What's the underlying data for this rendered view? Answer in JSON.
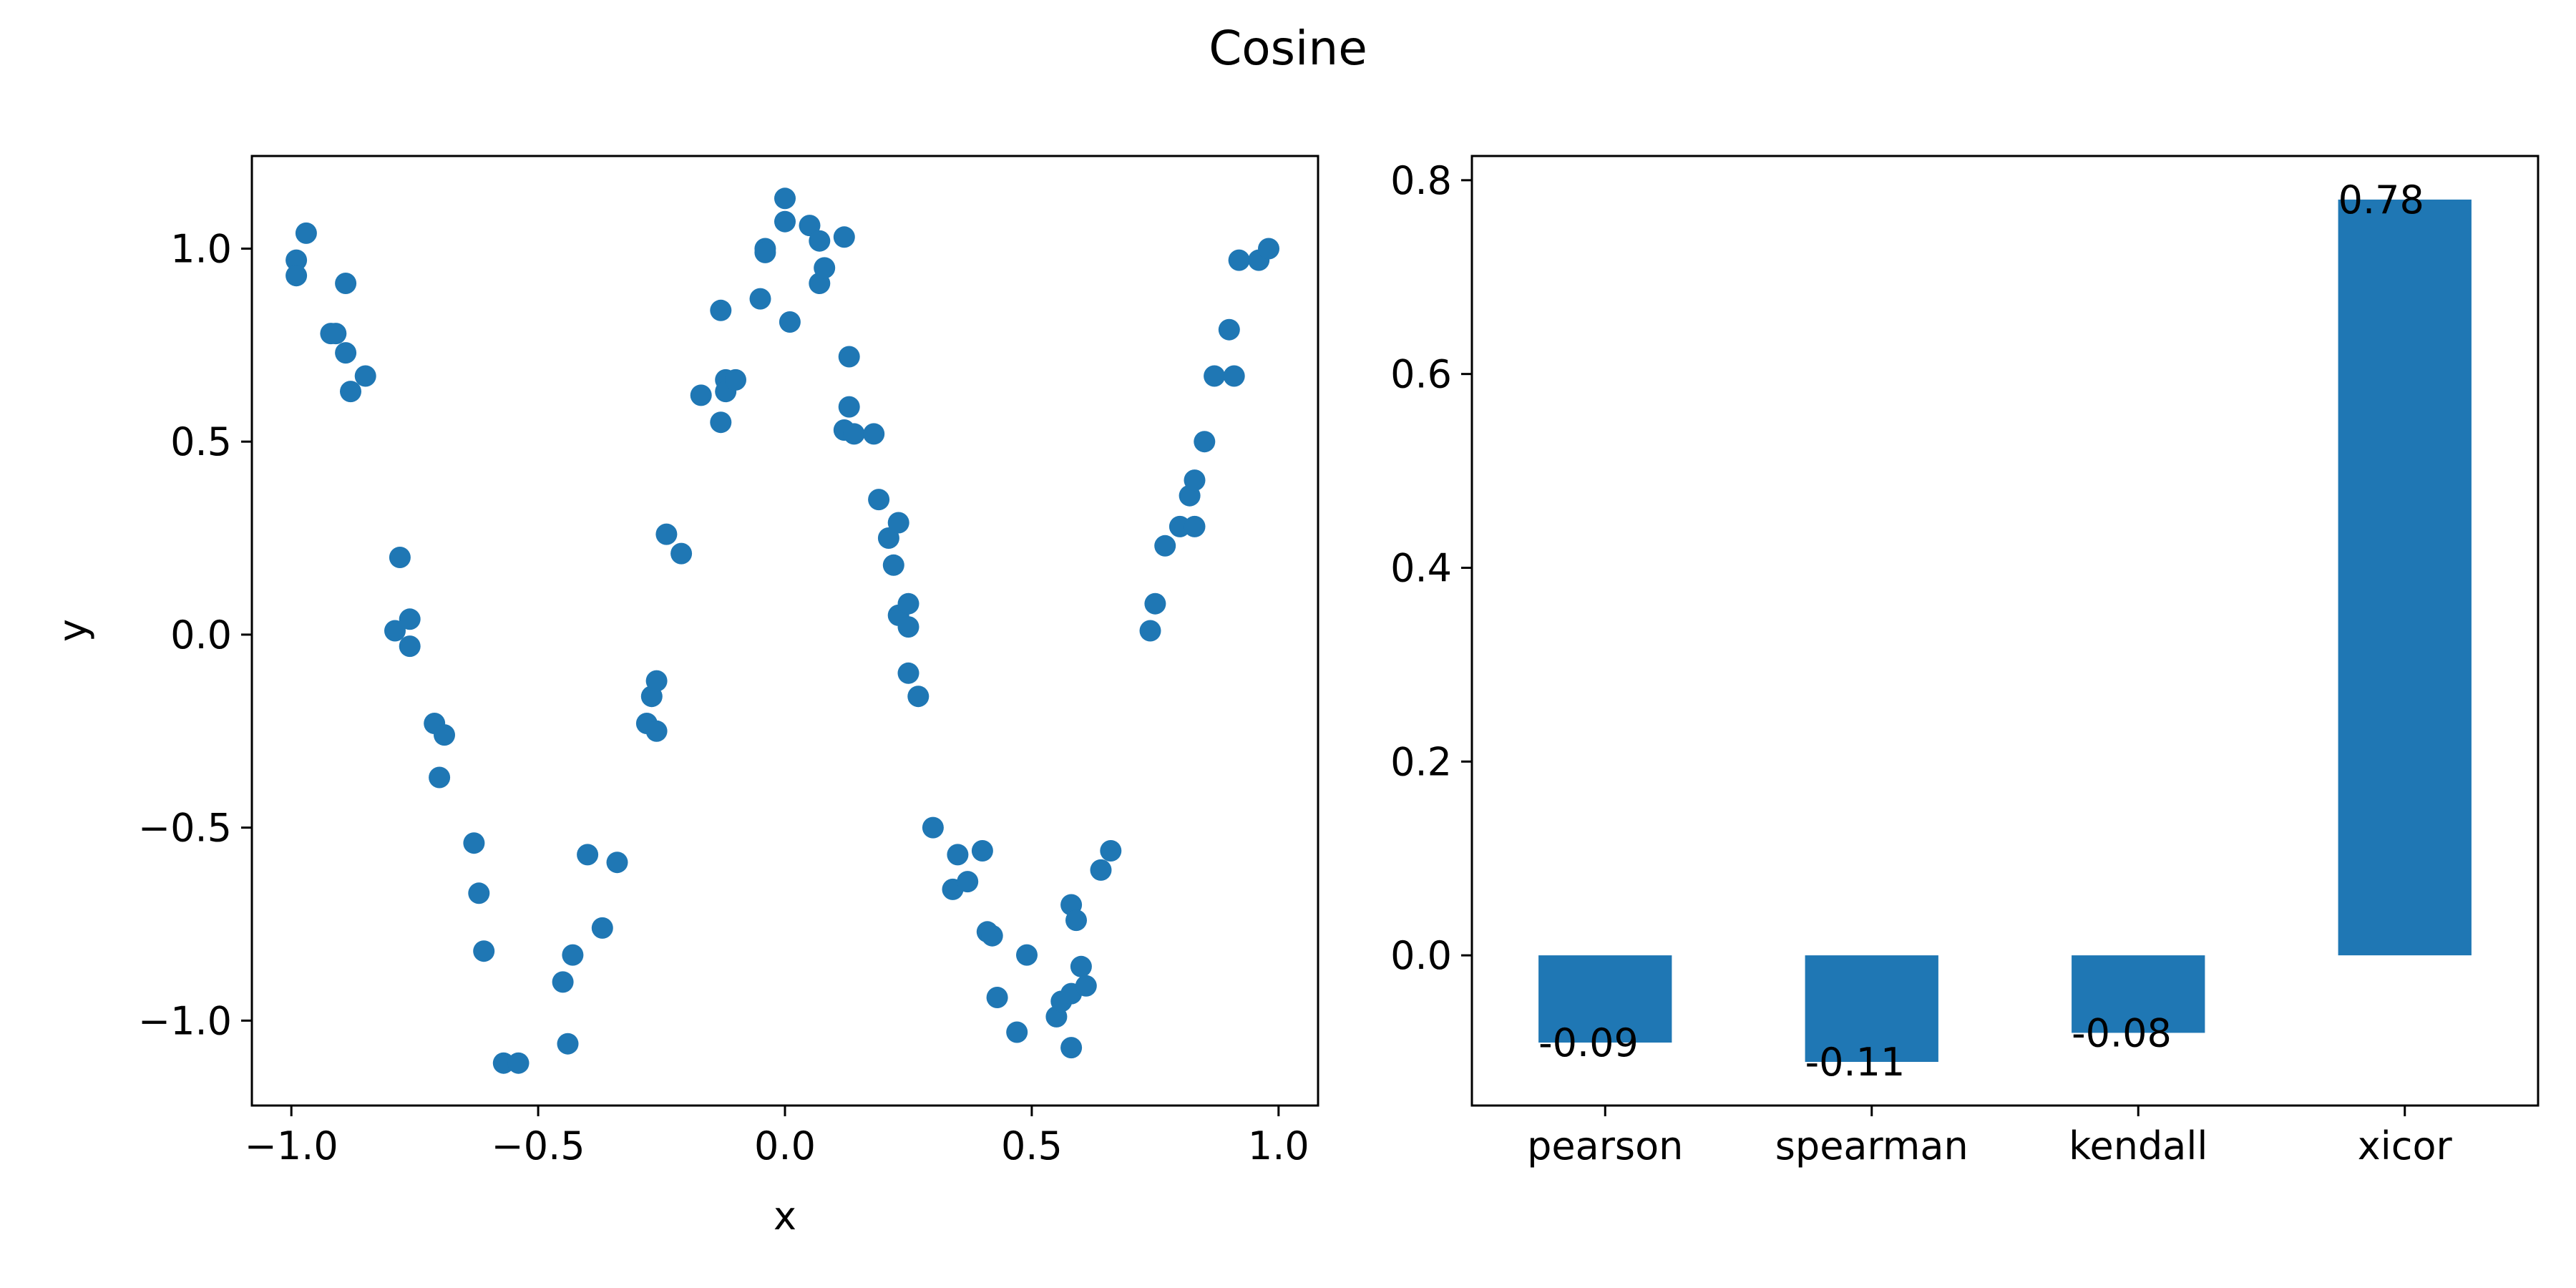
{
  "title": "Cosine",
  "colors": {
    "marker": "#1f77b4",
    "bar": "#1f77b4",
    "axes": "#000000",
    "background": "#ffffff"
  },
  "chart_data": [
    {
      "type": "scatter",
      "xlabel": "x",
      "ylabel": "y",
      "xlim": [
        -1.08,
        1.08
      ],
      "ylim": [
        -1.22,
        1.24
      ],
      "xticks": [
        -1.0,
        -0.5,
        0.0,
        0.5,
        1.0
      ],
      "xtick_labels": [
        "−1.0",
        "−0.5",
        "0.0",
        "0.5",
        "1.0"
      ],
      "yticks": [
        -1.0,
        -0.5,
        0.0,
        0.5,
        1.0
      ],
      "ytick_labels": [
        "−1.0",
        "−0.5",
        "0.0",
        "0.5",
        "1.0"
      ],
      "grid": false,
      "points": [
        [
          -0.99,
          0.97
        ],
        [
          -0.99,
          0.93
        ],
        [
          -0.97,
          1.04
        ],
        [
          -0.92,
          0.78
        ],
        [
          -0.91,
          0.78
        ],
        [
          -0.89,
          0.91
        ],
        [
          -0.89,
          0.73
        ],
        [
          -0.88,
          0.63
        ],
        [
          -0.85,
          0.67
        ],
        [
          -0.78,
          0.2
        ],
        [
          -0.79,
          0.01
        ],
        [
          -0.76,
          0.04
        ],
        [
          -0.76,
          -0.03
        ],
        [
          -0.71,
          -0.23
        ],
        [
          -0.7,
          -0.37
        ],
        [
          -0.69,
          -0.26
        ],
        [
          -0.63,
          -0.54
        ],
        [
          -0.62,
          -0.67
        ],
        [
          -0.61,
          -0.82
        ],
        [
          -0.57,
          -1.11
        ],
        [
          -0.54,
          -1.11
        ],
        [
          -0.45,
          -0.9
        ],
        [
          -0.44,
          -1.06
        ],
        [
          -0.43,
          -0.83
        ],
        [
          -0.4,
          -0.57
        ],
        [
          -0.37,
          -0.76
        ],
        [
          -0.34,
          -0.59
        ],
        [
          -0.28,
          -0.23
        ],
        [
          -0.27,
          -0.16
        ],
        [
          -0.26,
          -0.12
        ],
        [
          -0.26,
          -0.25
        ],
        [
          -0.24,
          0.26
        ],
        [
          -0.21,
          0.21
        ],
        [
          -0.17,
          0.62
        ],
        [
          -0.13,
          0.55
        ],
        [
          -0.13,
          0.84
        ],
        [
          -0.12,
          0.66
        ],
        [
          -0.12,
          0.63
        ],
        [
          -0.1,
          0.66
        ],
        [
          -0.05,
          0.87
        ],
        [
          -0.04,
          1.0
        ],
        [
          -0.04,
          0.99
        ],
        [
          0.0,
          1.13
        ],
        [
          0.0,
          1.07
        ],
        [
          0.01,
          0.81
        ],
        [
          0.05,
          1.06
        ],
        [
          0.07,
          1.02
        ],
        [
          0.07,
          0.91
        ],
        [
          0.08,
          0.95
        ],
        [
          0.12,
          1.03
        ],
        [
          0.12,
          0.53
        ],
        [
          0.13,
          0.59
        ],
        [
          0.13,
          0.72
        ],
        [
          0.14,
          0.52
        ],
        [
          0.18,
          0.52
        ],
        [
          0.19,
          0.35
        ],
        [
          0.21,
          0.25
        ],
        [
          0.22,
          0.18
        ],
        [
          0.23,
          0.29
        ],
        [
          0.23,
          0.05
        ],
        [
          0.25,
          0.08
        ],
        [
          0.25,
          0.02
        ],
        [
          0.25,
          -0.1
        ],
        [
          0.27,
          -0.16
        ],
        [
          0.3,
          -0.5
        ],
        [
          0.34,
          -0.66
        ],
        [
          0.35,
          -0.57
        ],
        [
          0.37,
          -0.64
        ],
        [
          0.4,
          -0.56
        ],
        [
          0.41,
          -0.77
        ],
        [
          0.42,
          -0.78
        ],
        [
          0.43,
          -0.94
        ],
        [
          0.47,
          -1.03
        ],
        [
          0.49,
          -0.83
        ],
        [
          0.55,
          -0.99
        ],
        [
          0.56,
          -0.95
        ],
        [
          0.58,
          -0.93
        ],
        [
          0.58,
          -0.7
        ],
        [
          0.59,
          -0.74
        ],
        [
          0.58,
          -1.07
        ],
        [
          0.6,
          -0.86
        ],
        [
          0.61,
          -0.91
        ],
        [
          0.64,
          -0.61
        ],
        [
          0.66,
          -0.56
        ],
        [
          0.74,
          0.01
        ],
        [
          0.75,
          0.08
        ],
        [
          0.77,
          0.23
        ],
        [
          0.8,
          0.28
        ],
        [
          0.82,
          0.36
        ],
        [
          0.83,
          0.28
        ],
        [
          0.83,
          0.4
        ],
        [
          0.85,
          0.5
        ],
        [
          0.87,
          0.67
        ],
        [
          0.9,
          0.79
        ],
        [
          0.91,
          0.67
        ],
        [
          0.92,
          0.97
        ],
        [
          0.96,
          0.97
        ],
        [
          0.98,
          1.0
        ]
      ]
    },
    {
      "type": "bar",
      "categories": [
        "pearson",
        "spearman",
        "kendall",
        "xicor"
      ],
      "values": [
        -0.09,
        -0.11,
        -0.08,
        0.78
      ],
      "value_labels": [
        "-0.09",
        "-0.11",
        "-0.08",
        "0.78"
      ],
      "ylim": [
        -0.155,
        0.825
      ],
      "yticks": [
        0.0,
        0.2,
        0.4,
        0.6,
        0.8
      ],
      "ytick_labels": [
        "0.0",
        "0.2",
        "0.4",
        "0.6",
        "0.8"
      ],
      "grid": false
    }
  ]
}
